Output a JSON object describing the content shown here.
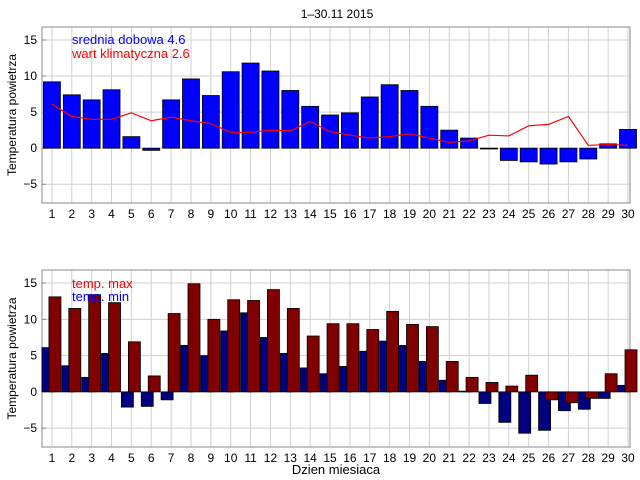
{
  "chart_data": [
    {
      "type": "bar",
      "title": "1–30.11 2015",
      "xlabel": "",
      "ylabel": "Temperatura powietrza",
      "ylim": [
        -7.6,
        16.8
      ],
      "yticks": [
        -5,
        0,
        5,
        10,
        15
      ],
      "x": [
        1,
        2,
        3,
        4,
        5,
        6,
        7,
        8,
        9,
        10,
        11,
        12,
        13,
        14,
        15,
        16,
        17,
        18,
        19,
        20,
        21,
        22,
        23,
        24,
        25,
        26,
        27,
        28,
        29,
        30
      ],
      "grid": true,
      "legend": [
        "srednia dobowa 4.6",
        "wart klimatyczna 2.6"
      ],
      "legend_placement": "top-left",
      "series": [
        {
          "name": "srednia dobowa",
          "kind": "bar",
          "color": "#0000ff",
          "values": [
            9.2,
            7.4,
            6.7,
            8.1,
            1.6,
            -0.3,
            6.7,
            9.6,
            7.3,
            10.6,
            11.8,
            10.7,
            8.0,
            5.8,
            4.6,
            4.9,
            7.1,
            8.8,
            8.0,
            5.8,
            2.5,
            1.4,
            0.0,
            -1.7,
            -1.9,
            -2.2,
            -1.9,
            -1.5,
            0.6,
            2.6
          ]
        },
        {
          "name": "wart klimatyczna",
          "kind": "line",
          "color": "#ff0000",
          "values": [
            6.1,
            4.4,
            4.0,
            4.0,
            4.9,
            3.8,
            4.3,
            3.8,
            3.4,
            2.2,
            2.2,
            2.5,
            2.4,
            3.7,
            2.3,
            1.8,
            1.4,
            1.6,
            2.0,
            1.4,
            0.8,
            1.0,
            1.8,
            1.7,
            3.1,
            3.3,
            4.4,
            0.4,
            0.5,
            0.4
          ]
        }
      ]
    },
    {
      "type": "bar",
      "title": "",
      "xlabel": "Dzien miesiaca",
      "ylabel": "Temperatura powietrza",
      "ylim": [
        -7.6,
        16.8
      ],
      "yticks": [
        -5,
        0,
        5,
        10,
        15
      ],
      "x": [
        1,
        2,
        3,
        4,
        5,
        6,
        7,
        8,
        9,
        10,
        11,
        12,
        13,
        14,
        15,
        16,
        17,
        18,
        19,
        20,
        21,
        22,
        23,
        24,
        25,
        26,
        27,
        28,
        29,
        30
      ],
      "grid": true,
      "legend": [
        "temp. max",
        "temp. min"
      ],
      "legend_colors": [
        "#ff0000",
        "#0000ff"
      ],
      "legend_placement": "top-left",
      "series": [
        {
          "name": "temp. min",
          "kind": "bar",
          "color": "#000080",
          "values": [
            6.1,
            3.6,
            2.0,
            5.3,
            -2.1,
            -2.0,
            -1.1,
            6.4,
            5.0,
            8.4,
            10.9,
            7.5,
            5.3,
            3.3,
            2.5,
            3.5,
            5.6,
            7.0,
            6.4,
            4.2,
            1.6,
            0.1,
            -1.6,
            -4.2,
            -5.7,
            -5.3,
            -2.6,
            -2.4,
            -0.9,
            0.9
          ]
        },
        {
          "name": "temp. max",
          "kind": "bar",
          "color": "#800000",
          "values": [
            13.1,
            11.5,
            13.4,
            12.3,
            6.9,
            2.2,
            10.8,
            14.9,
            10.0,
            12.7,
            12.6,
            14.1,
            11.5,
            7.7,
            9.4,
            9.4,
            8.6,
            11.1,
            9.3,
            9.0,
            4.2,
            2.0,
            1.3,
            0.8,
            2.3,
            -1.1,
            -1.5,
            -0.9,
            2.5,
            5.8
          ]
        }
      ]
    }
  ]
}
